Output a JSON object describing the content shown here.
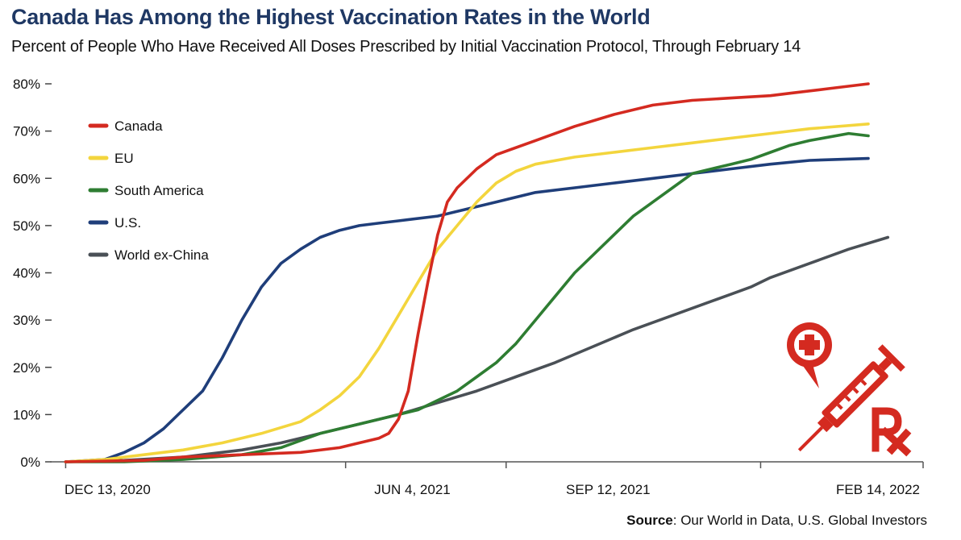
{
  "chart_data": {
    "type": "line",
    "title": "Canada Has Among the Highest Vaccination Rates in the World",
    "subtitle": "Percent of People Who Have Received All Doses Prescribed by Initial Vaccination Protocol, Through February 14",
    "xlabel": "",
    "ylabel": "",
    "x_unit": "days since Dec 13, 2020",
    "xlim": [
      -8,
      438
    ],
    "ylim": [
      0,
      80
    ],
    "y_ticks": [
      0,
      10,
      20,
      30,
      40,
      50,
      60,
      70,
      80
    ],
    "y_tick_labels": [
      "0%",
      "10%",
      "20%",
      "30%",
      "40%",
      "50%",
      "60%",
      "70%",
      "80%"
    ],
    "x_tick_positions": [
      0,
      173,
      273,
      428
    ],
    "x_tick_labels": [
      "DEC 13, 2020",
      "JUN 4, 2021",
      "SEP 12, 2021",
      "FEB 14, 2022"
    ],
    "x_tick_marks": [
      0,
      143,
      225,
      355,
      438
    ],
    "legend_position": "top-left",
    "source_label": "Source",
    "source_text": ": Our World in Data, U.S. Global Investors",
    "series": [
      {
        "name": "Canada",
        "color": "#d42a20",
        "points": [
          [
            0,
            0
          ],
          [
            40,
            0.3
          ],
          [
            60,
            1
          ],
          [
            90,
            1.5
          ],
          [
            120,
            2
          ],
          [
            140,
            3
          ],
          [
            150,
            4
          ],
          [
            160,
            5
          ],
          [
            165,
            6
          ],
          [
            170,
            9
          ],
          [
            175,
            15
          ],
          [
            180,
            27
          ],
          [
            185,
            38
          ],
          [
            190,
            48
          ],
          [
            195,
            55
          ],
          [
            200,
            58
          ],
          [
            210,
            62
          ],
          [
            220,
            65
          ],
          [
            240,
            68
          ],
          [
            260,
            71
          ],
          [
            280,
            73.5
          ],
          [
            300,
            75.5
          ],
          [
            320,
            76.5
          ],
          [
            340,
            77
          ],
          [
            360,
            77.5
          ],
          [
            370,
            78
          ],
          [
            390,
            79
          ],
          [
            410,
            80
          ]
        ]
      },
      {
        "name": "EU",
        "color": "#f3d53d",
        "points": [
          [
            0,
            0
          ],
          [
            20,
            0.5
          ],
          [
            40,
            1.5
          ],
          [
            60,
            2.5
          ],
          [
            80,
            4
          ],
          [
            100,
            6
          ],
          [
            120,
            8.5
          ],
          [
            130,
            11
          ],
          [
            140,
            14
          ],
          [
            150,
            18
          ],
          [
            160,
            24
          ],
          [
            170,
            31
          ],
          [
            180,
            38
          ],
          [
            190,
            45
          ],
          [
            200,
            50
          ],
          [
            210,
            55
          ],
          [
            220,
            59
          ],
          [
            230,
            61.5
          ],
          [
            240,
            63
          ],
          [
            260,
            64.5
          ],
          [
            280,
            65.5
          ],
          [
            300,
            66.5
          ],
          [
            320,
            67.5
          ],
          [
            340,
            68.5
          ],
          [
            360,
            69.5
          ],
          [
            380,
            70.5
          ],
          [
            410,
            71.5
          ]
        ]
      },
      {
        "name": "South America",
        "color": "#2e7d32",
        "points": [
          [
            0,
            0
          ],
          [
            30,
            0
          ],
          [
            60,
            0.5
          ],
          [
            90,
            1.5
          ],
          [
            110,
            3
          ],
          [
            130,
            6
          ],
          [
            150,
            8
          ],
          [
            170,
            10
          ],
          [
            180,
            11
          ],
          [
            190,
            13
          ],
          [
            200,
            15
          ],
          [
            210,
            18
          ],
          [
            220,
            21
          ],
          [
            230,
            25
          ],
          [
            240,
            30
          ],
          [
            250,
            35
          ],
          [
            260,
            40
          ],
          [
            270,
            44
          ],
          [
            280,
            48
          ],
          [
            290,
            52
          ],
          [
            300,
            55
          ],
          [
            310,
            58
          ],
          [
            320,
            61
          ],
          [
            330,
            62
          ],
          [
            340,
            63
          ],
          [
            350,
            64
          ],
          [
            360,
            65.5
          ],
          [
            370,
            67
          ],
          [
            380,
            68
          ],
          [
            400,
            69.5
          ],
          [
            410,
            69
          ]
        ]
      },
      {
        "name": "U.S.",
        "color": "#1f3e7a",
        "points": [
          [
            0,
            0
          ],
          [
            20,
            0.5
          ],
          [
            30,
            2
          ],
          [
            40,
            4
          ],
          [
            50,
            7
          ],
          [
            60,
            11
          ],
          [
            70,
            15
          ],
          [
            80,
            22
          ],
          [
            90,
            30
          ],
          [
            100,
            37
          ],
          [
            110,
            42
          ],
          [
            120,
            45
          ],
          [
            130,
            47.5
          ],
          [
            140,
            49
          ],
          [
            150,
            50
          ],
          [
            160,
            50.5
          ],
          [
            170,
            51
          ],
          [
            190,
            52
          ],
          [
            200,
            53
          ],
          [
            220,
            55
          ],
          [
            240,
            57
          ],
          [
            260,
            58
          ],
          [
            280,
            59
          ],
          [
            300,
            60
          ],
          [
            320,
            61
          ],
          [
            340,
            62
          ],
          [
            360,
            63
          ],
          [
            380,
            63.8
          ],
          [
            410,
            64.2
          ]
        ]
      },
      {
        "name": "World ex-China",
        "color": "#4a5056",
        "points": [
          [
            0,
            0
          ],
          [
            30,
            0.3
          ],
          [
            60,
            1
          ],
          [
            90,
            2.5
          ],
          [
            110,
            4
          ],
          [
            130,
            6
          ],
          [
            150,
            8
          ],
          [
            170,
            10
          ],
          [
            190,
            12.5
          ],
          [
            210,
            15
          ],
          [
            230,
            18
          ],
          [
            250,
            21
          ],
          [
            270,
            24.5
          ],
          [
            290,
            28
          ],
          [
            310,
            31
          ],
          [
            330,
            34
          ],
          [
            340,
            35.5
          ],
          [
            350,
            37
          ],
          [
            360,
            39
          ],
          [
            380,
            42
          ],
          [
            400,
            45
          ],
          [
            420,
            47.5
          ]
        ]
      }
    ]
  }
}
